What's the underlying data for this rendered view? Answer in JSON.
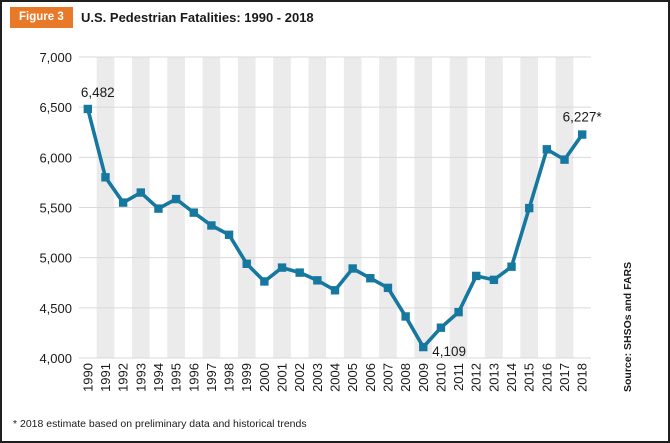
{
  "header": {
    "badge": "Figure 3",
    "title": "U.S. Pedestrian Fatalities: 1990 - 2018"
  },
  "chart_data": {
    "type": "line",
    "title": "U.S. Pedestrian Fatalities: 1990 - 2018",
    "categories": [
      "1990",
      "1991",
      "1992",
      "1993",
      "1994",
      "1995",
      "1996",
      "1997",
      "1998",
      "1999",
      "2000",
      "2001",
      "2002",
      "2003",
      "2004",
      "2005",
      "2006",
      "2007",
      "2008",
      "2009",
      "2010",
      "2011",
      "2012",
      "2013",
      "2014",
      "2015",
      "2016",
      "2017",
      "2018"
    ],
    "series": [
      {
        "name": "U.S. pedestrian fatalities",
        "values": [
          6482,
          5801,
          5549,
          5649,
          5489,
          5584,
          5449,
          5321,
          5228,
          4939,
          4763,
          4901,
          4851,
          4774,
          4675,
          4892,
          4795,
          4699,
          4414,
          4109,
          4302,
          4457,
          4818,
          4779,
          4910,
          5494,
          6080,
          5977,
          6227
        ]
      }
    ],
    "ylim": [
      4000,
      7000
    ],
    "yticks": [
      7000,
      6500,
      6000,
      5500,
      5000,
      4500,
      4000
    ],
    "grid": "horizontal",
    "background_bands": "alternating vertical stripes, one per year",
    "marker": "square",
    "legend": "none",
    "annotations": [
      {
        "category": "1990",
        "value": 6482,
        "label": "6,482",
        "placement": "above"
      },
      {
        "category": "2009",
        "value": 4109,
        "label": "4,109",
        "placement": "right"
      },
      {
        "category": "2018",
        "value": 6227,
        "label": "6,227*",
        "placement": "above"
      }
    ],
    "source_label": "Source: SHSOs and FARS"
  },
  "footnote": {
    "text": "* 2018 estimate based on preliminary data and historical trends"
  },
  "colors": {
    "accent_orange": "#e87928",
    "line": "#16789f",
    "stripe": "#ebebeb",
    "gridline": "#d9d9d9",
    "text": "#1a1a1a",
    "frame_border": "#1f1f1f"
  }
}
